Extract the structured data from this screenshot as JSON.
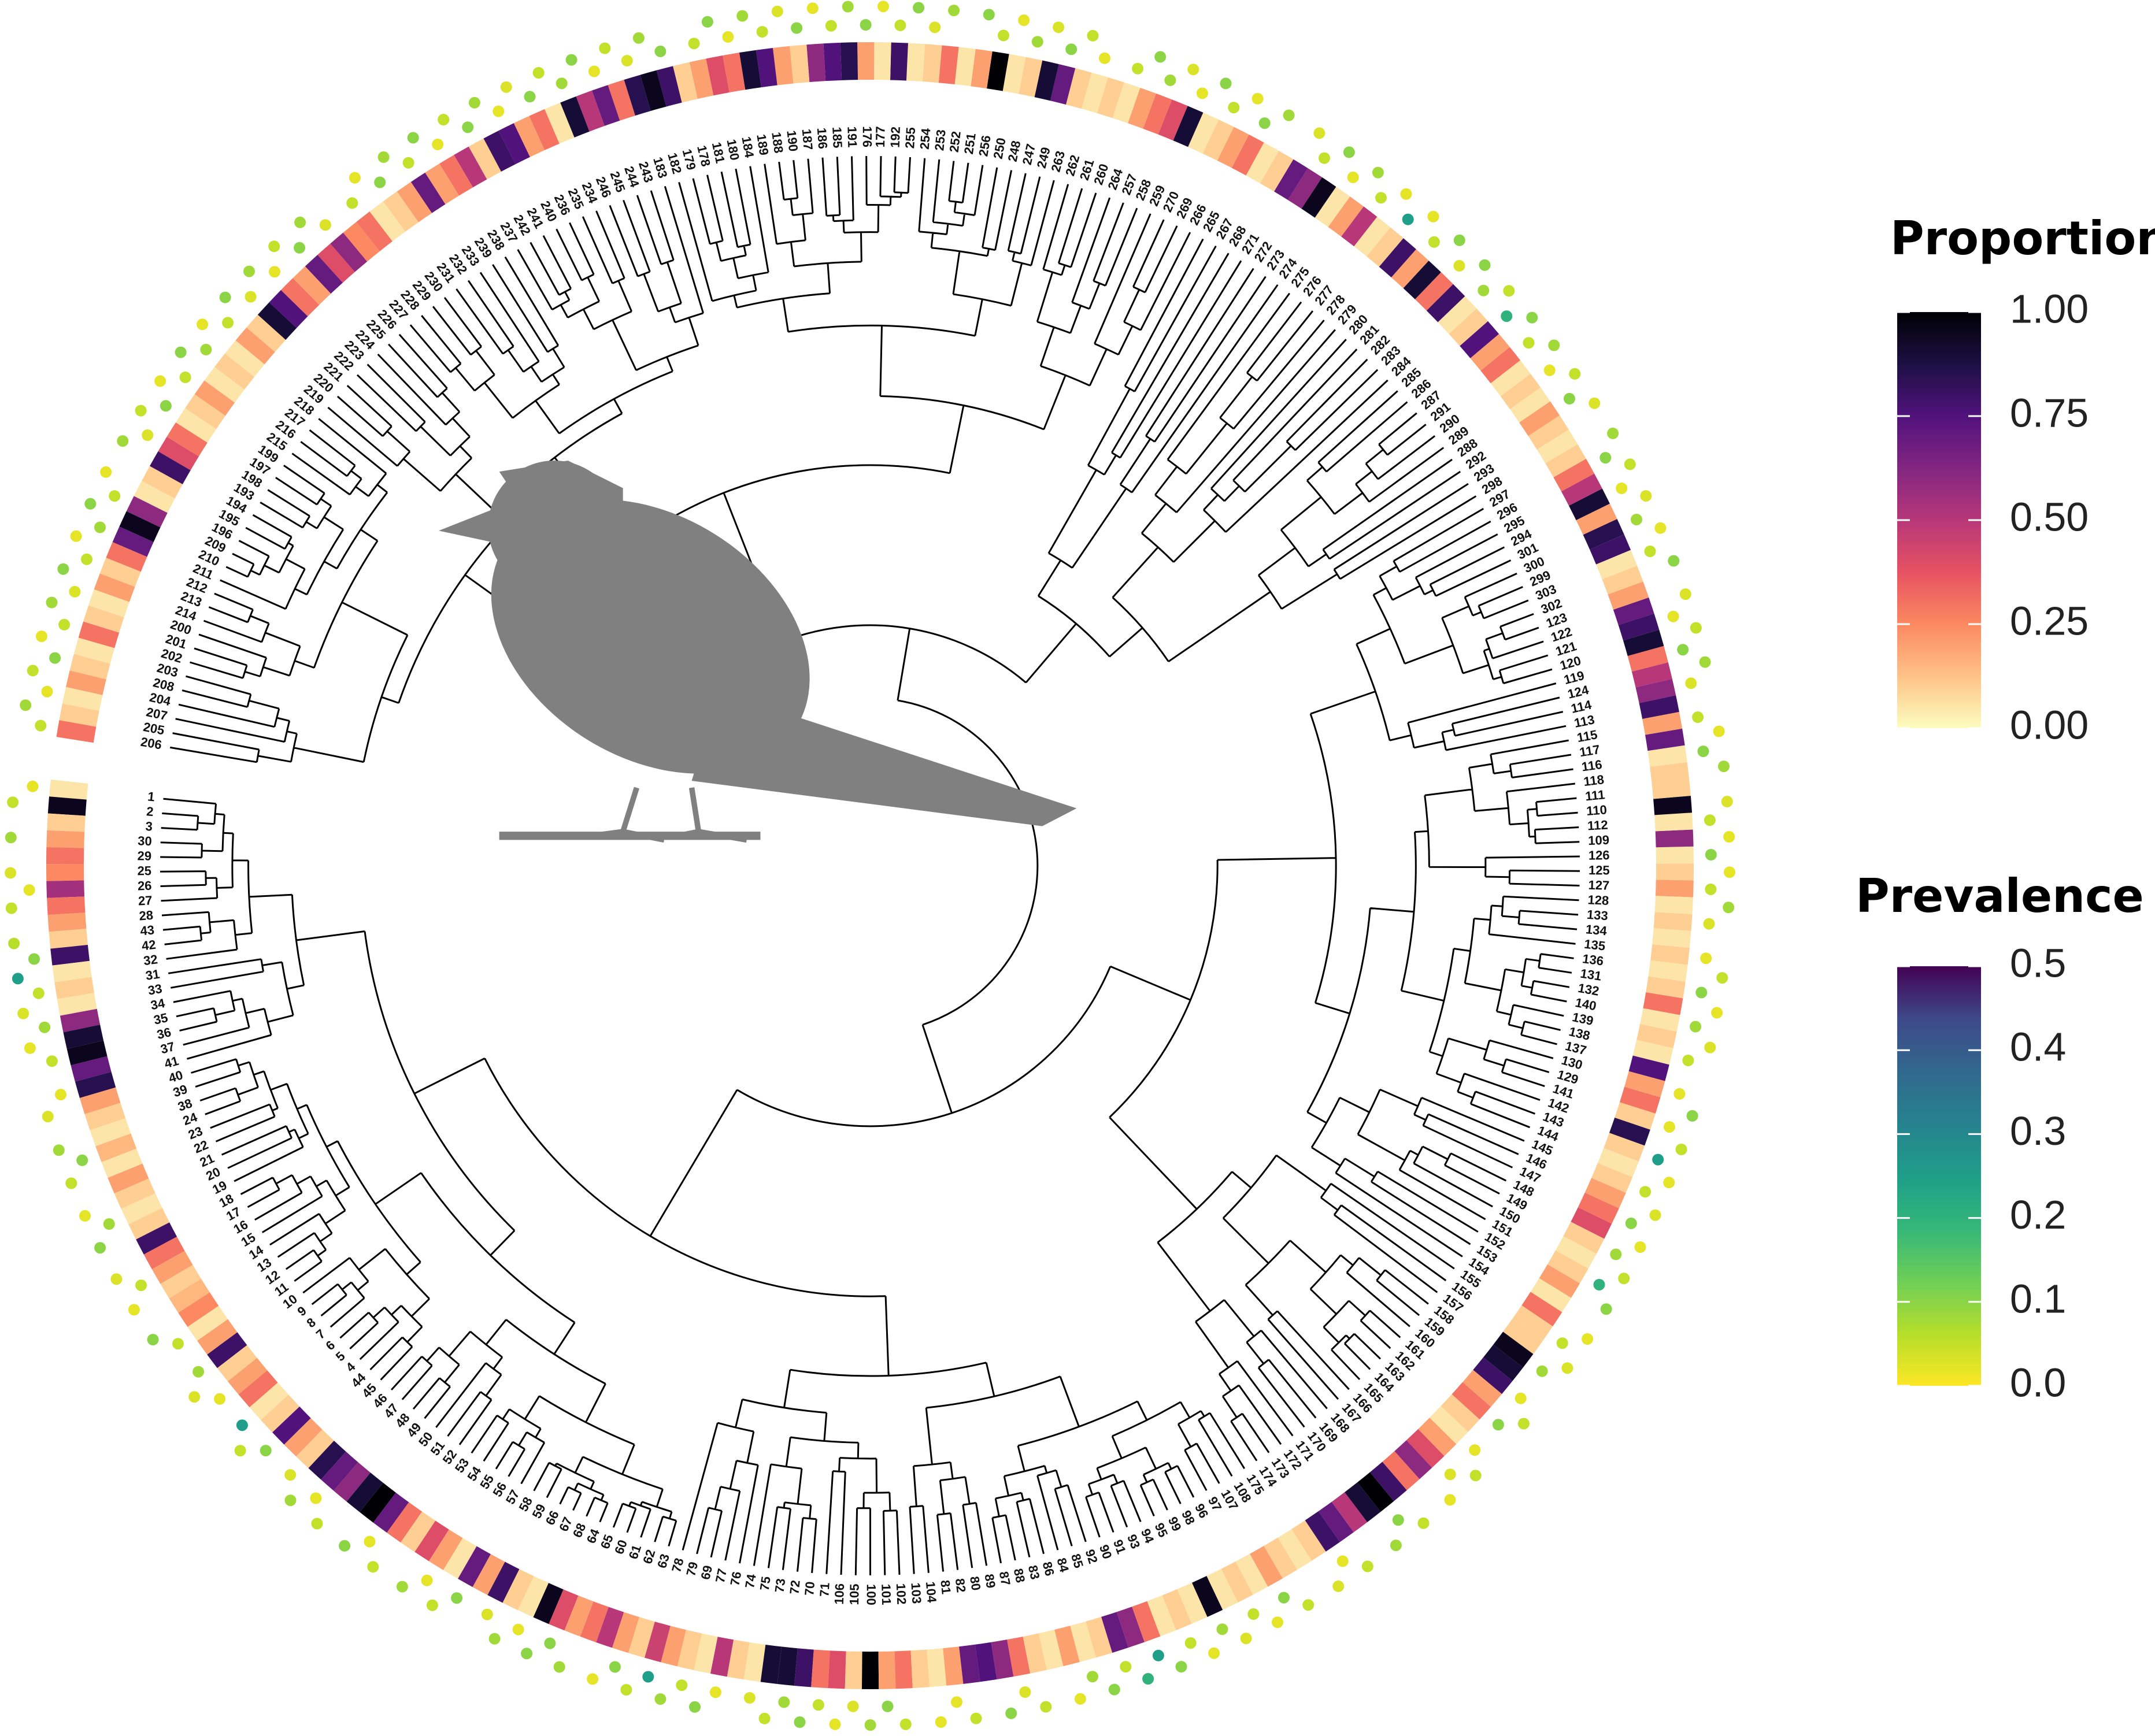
{
  "chart_data": {
    "type": "circular-tree",
    "tips": [
      1,
      2,
      3,
      30,
      29,
      25,
      26,
      27,
      28,
      43,
      42,
      32,
      31,
      33,
      34,
      35,
      36,
      37,
      41,
      40,
      39,
      38,
      24,
      23,
      22,
      21,
      20,
      19,
      18,
      17,
      16,
      15,
      14,
      13,
      12,
      11,
      10,
      9,
      8,
      7,
      6,
      5,
      4,
      44,
      45,
      46,
      47,
      48,
      49,
      50,
      51,
      52,
      53,
      54,
      55,
      56,
      57,
      58,
      59,
      66,
      67,
      68,
      64,
      65,
      60,
      61,
      62,
      63,
      78,
      79,
      69,
      77,
      76,
      74,
      75,
      73,
      72,
      70,
      71,
      106,
      105,
      100,
      101,
      102,
      103,
      104,
      81,
      82,
      80,
      89,
      87,
      88,
      83,
      86,
      84,
      85,
      92,
      90,
      91,
      93,
      94,
      95,
      99,
      98,
      96,
      97,
      107,
      108,
      175,
      174,
      173,
      172,
      171,
      170,
      169,
      168,
      167,
      166,
      165,
      164,
      163,
      162,
      161,
      160,
      159,
      158,
      157,
      156,
      155,
      154,
      153,
      152,
      151,
      150,
      149,
      148,
      147,
      146,
      145,
      144,
      143,
      142,
      141,
      129,
      130,
      137,
      138,
      139,
      140,
      132,
      131,
      136,
      135,
      134,
      133,
      128,
      127,
      125,
      126,
      109,
      112,
      110,
      111,
      118,
      116,
      117,
      115,
      113,
      114,
      124,
      119,
      120,
      121,
      122,
      123,
      302,
      303,
      299,
      300,
      301,
      294,
      295,
      296,
      297,
      298,
      293,
      292,
      288,
      289,
      290,
      291,
      287,
      286,
      285,
      284,
      283,
      282,
      281,
      280,
      279,
      278,
      277,
      276,
      275,
      274,
      273,
      272,
      271,
      268,
      267,
      265,
      266,
      269,
      270,
      259,
      258,
      257,
      264,
      260,
      261,
      262,
      263,
      249,
      247,
      248,
      250,
      256,
      251,
      252,
      253,
      254,
      255,
      192,
      177,
      176,
      191,
      185,
      186,
      187,
      190,
      188,
      189,
      184,
      180,
      181,
      178,
      179,
      182,
      183,
      243,
      244,
      245,
      246,
      234,
      235,
      236,
      240,
      241,
      242,
      237,
      238,
      239,
      233,
      232,
      231,
      230,
      229,
      228,
      227,
      226,
      225,
      224,
      223,
      222,
      221,
      220,
      219,
      218,
      217,
      216,
      215,
      199,
      197,
      198,
      193,
      194,
      195,
      196,
      209,
      210,
      211,
      212,
      213,
      214,
      200,
      201,
      202,
      203,
      208,
      204,
      207,
      205,
      206
    ],
    "proportion": [
      0.05,
      0.95,
      0.1,
      0.2,
      0.3,
      0.25,
      0.55,
      0.3,
      0.2,
      0.1,
      0.8,
      0.05,
      0.1,
      0.05,
      0.6,
      0.9,
      0.95,
      0.7,
      0.85,
      0.2,
      0.1,
      0.05,
      0.15,
      0.05,
      0.2,
      0.1,
      0.05,
      0.1,
      0.8,
      0.3,
      0.2,
      0.1,
      0.15,
      0.25,
      0.05,
      0.2,
      0.8,
      0.1,
      0.2,
      0.3,
      0.05,
      0.1,
      0.75,
      0.2,
      0.1,
      0.85,
      0.7,
      0.6,
      0.9,
      1.0,
      0.7,
      0.3,
      0.1,
      0.4,
      0.2,
      0.05,
      0.7,
      0.2,
      0.8,
      0.1,
      0.05,
      0.95,
      0.4,
      0.2,
      0.3,
      0.5,
      0.2,
      0.1,
      0.45,
      0.2,
      0.1,
      0.05,
      0.5,
      0.1,
      0.05,
      0.9,
      0.9,
      0.8,
      0.3,
      0.4,
      0.1,
      1.0,
      0.2,
      0.3,
      0.1,
      0.05,
      0.2,
      0.7,
      0.75,
      0.6,
      0.3,
      0.1,
      0.05,
      0.2,
      0.05,
      0.1,
      0.7,
      0.6,
      0.3,
      0.05,
      0.1,
      0.05,
      0.95,
      0.05,
      0.1,
      0.05,
      0.2,
      0.1,
      0.05,
      0.1,
      0.8,
      0.7,
      0.5,
      0.9,
      1.0,
      0.8,
      0.3,
      0.6,
      0.4,
      0.2,
      0.05,
      0.1,
      0.3,
      0.2,
      0.8,
      0.9,
      0.95,
      0.1,
      0.1,
      0.3,
      0.05,
      0.2,
      0.1,
      0.05,
      0.1,
      0.4,
      0.3,
      0.2,
      0.1,
      0.05,
      0.1,
      0.85,
      0.1,
      0.3,
      0.2,
      0.75,
      0.05,
      0.1,
      0.05,
      0.3,
      0.1,
      0.05,
      0.1,
      0.05,
      0.1,
      0.05,
      0.2,
      0.1,
      0.05,
      0.6,
      0.05,
      0.95,
      0.1,
      0.1,
      0.05,
      0.7,
      0.2,
      0.8,
      0.6,
      0.5,
      0.3,
      0.9,
      0.8,
      0.7,
      0.2,
      0.1,
      0.05,
      0.8,
      0.85,
      0.2,
      0.9,
      0.5,
      0.3,
      0.1,
      0.05,
      0.1,
      0.2,
      0.05,
      0.1,
      0.05,
      0.3,
      0.2,
      0.75,
      0.1,
      0.05,
      0.8,
      0.3,
      0.9,
      0.2,
      0.8,
      0.1,
      0.05,
      0.5,
      0.2,
      0.05,
      0.95,
      0.6,
      0.7,
      0.1,
      0.05,
      0.3,
      0.2,
      0.1,
      0.05,
      0.9,
      0.4,
      0.3,
      0.2,
      0.05,
      0.1,
      0.05,
      0.1,
      0.7,
      0.9,
      0.1,
      0.05,
      1.0,
      0.2,
      0.05,
      0.3,
      0.1,
      0.05,
      0.8,
      0.05,
      0.2,
      0.85,
      0.75,
      0.6,
      0.1,
      0.2,
      0.75,
      0.9,
      0.3,
      0.4,
      0.2,
      0.1,
      0.8,
      0.95,
      0.85,
      0.3,
      0.7,
      0.5,
      0.9,
      0.05,
      0.3,
      0.2,
      0.75,
      0.8,
      0.1,
      0.5,
      0.3,
      0.2,
      0.7,
      0.2,
      0.1,
      0.05,
      0.3,
      0.25,
      0.6,
      0.4,
      0.7,
      0.2,
      0.3,
      0.75,
      0.9,
      0.1,
      0.2,
      0.05,
      0.1,
      0.05,
      0.2,
      0.1,
      0.05,
      0.3,
      0.4,
      0.8,
      0.1,
      0.05,
      0.6,
      0.95,
      0.7,
      0.3,
      0.1,
      0.2,
      0.05,
      0.1,
      0.3,
      0.05,
      0.1,
      0.2,
      0.05,
      0.1,
      0.3
    ],
    "prevalence": [
      0.02,
      0.05,
      null,
      0.08,
      null,
      0.03,
      0.02,
      0.05,
      null,
      0.06,
      0.1,
      0.25,
      0.05,
      0.03,
      0.08,
      0.02,
      0.05,
      null,
      0.02,
      0.03,
      null,
      0.08,
      0.1,
      0.05,
      null,
      0.02,
      0.08,
      0.1,
      null,
      0.03,
      0.05,
      0.02,
      null,
      0.1,
      0.05,
      null,
      0.08,
      0.03,
      0.02,
      null,
      0.25,
      0.05,
      0.1,
      null,
      0.03,
      0.08,
      0.02,
      0.05,
      null,
      0.1,
      0.02,
      0.05,
      null,
      0.08,
      0.02,
      0.05,
      0.1,
      null,
      0.03,
      0.08,
      0.02,
      0.1,
      0.1,
      0.08,
      null,
      0.02,
      0.1,
      0.05,
      0.25,
      0.08,
      0.05,
      0.1,
      0.02,
      null,
      0.03,
      0.05,
      0.08,
      0.1,
      0.05,
      0.02,
      0.03,
      0.08,
      0.1,
      0.05,
      null,
      0.02,
      0.02,
      0.05,
      null,
      0.1,
      0.03,
      0.05,
      null,
      0.02,
      0.08,
      0.1,
      0.05,
      0.2,
      0.25,
      0.1,
      0.05,
      0.02,
      0.08,
      0.03,
      0.05,
      0.02,
      0.1,
      0.05,
      null,
      0.03,
      0.02,
      0.05,
      null,
      0.08,
      0.1,
      0.05,
      null,
      0.02,
      0.03,
      0.05,
      0.02,
      null,
      0.1,
      0.05,
      0.02,
      null,
      0.08,
      0.03,
      0.05,
      0.02,
      null,
      0.1,
      0.2,
      0.05,
      0.08,
      0.02,
      0.1,
      0.03,
      0.05,
      0.02,
      0.25,
      0.05,
      0.02,
      0.1,
      0.02,
      null,
      0.05,
      0.03,
      0.08,
      0.02,
      0.1,
      0.05,
      0.02,
      null,
      0.03,
      0.08,
      0.05,
      0.02,
      0.1,
      0.02,
      0.05,
      0.03,
      null,
      0.08,
      0.1,
      0.02,
      0.05,
      null,
      0.03,
      0.08,
      0.1,
      0.05,
      0.02,
      0.03,
      null,
      0.1,
      0.05,
      0.02,
      0.08,
      0.03,
      0.02,
      0.05,
      0.1,
      0.08,
      null,
      0.03,
      0.1,
      0.05,
      0.02,
      0.08,
      0.05,
      0.1,
      0.2,
      0.05,
      0.08,
      0.1,
      0.03,
      0.1,
      0.05,
      0.02,
      0.25,
      0.02,
      0.05,
      0.08,
      0.02,
      0.1,
      0.05,
      0.03,
      null,
      0.08,
      0.1,
      0.02,
      0.05,
      0.1,
      0.02,
      0.03,
      0.08,
      0.1,
      0.05,
      null,
      0.02,
      0.05,
      0.1,
      0.03,
      0.08,
      0.02,
      0.05,
      0.1,
      null,
      0.08,
      0.03,
      0.1,
      0.05,
      0.02,
      0.1,
      0.08,
      0.05,
      0.02,
      0.1,
      0.03,
      0.05,
      0.08,
      0.02,
      0.1,
      0.05,
      null,
      0.1,
      0.08,
      0.03,
      0.05,
      0.02,
      0.1,
      0.08,
      0.05,
      0.1,
      0.03,
      0.02,
      0.08,
      0.1,
      0.05,
      0.02,
      0.1,
      0.05,
      0.08,
      0.1,
      0.02,
      0.05,
      null,
      0.03,
      0.08,
      0.1,
      0.05,
      0.02,
      0.08,
      0.03,
      0.1,
      0.05,
      0.02,
      0.08,
      0.1,
      0.05,
      0.02,
      0.1,
      0.05,
      0.03,
      0.08,
      null,
      0.02,
      0.05,
      0.1,
      0.08,
      0.02,
      0.05,
      0.1,
      0.03,
      0.08,
      0.05,
      0.02,
      0.1,
      0.05,
      0.02,
      0.08,
      0.05
    ],
    "legends": [
      {
        "title": "Proportion",
        "colormap": "magma",
        "lim": [
          0,
          1
        ],
        "ticks": [
          {
            "value": 1,
            "label": "1.00"
          },
          0.75,
          {
            "value": 0.5,
            "label": "0.50"
          },
          0.25,
          {
            "value": 0,
            "label": "0.00"
          }
        ]
      },
      {
        "title": "Prevalence",
        "colormap": "viridis",
        "lim": [
          0,
          0.5
        ],
        "ticks": [
          0.5,
          0.4,
          0.3,
          0.2,
          0.1,
          {
            "value": 0,
            "label": "0.0"
          }
        ]
      }
    ]
  }
}
